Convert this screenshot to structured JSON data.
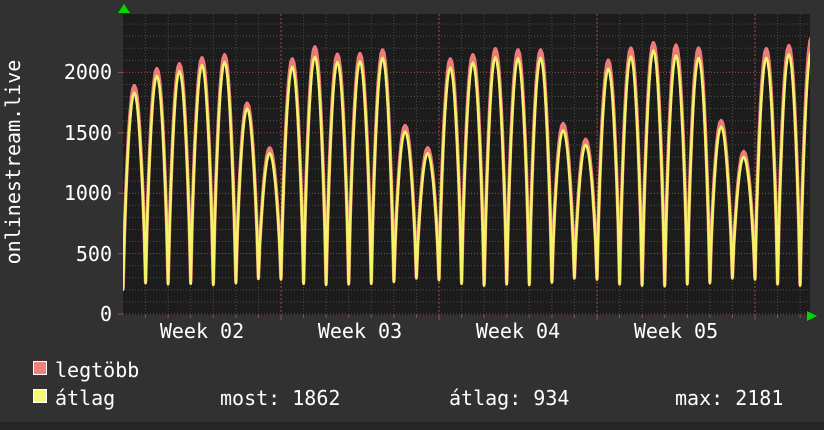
{
  "title": "onlinestream.live",
  "window": {
    "bg": "#313131",
    "bottom_strip": "#262626",
    "plot_bg": "#1c1c1c"
  },
  "legend": {
    "items": [
      {
        "label": "legtöbb",
        "color": "#f08080"
      },
      {
        "label": "átlag",
        "color": "#f9f97d"
      }
    ]
  },
  "stats": [
    {
      "label": "most",
      "value": "1862",
      "text": "most: 1862"
    },
    {
      "label": "átlag",
      "value": "934",
      "text": "átlag: 934"
    },
    {
      "label": "max",
      "value": "2181",
      "text": "max: 2181"
    }
  ],
  "chart_data": {
    "type": "line",
    "title": "onlinestream.live",
    "xlabel": "",
    "ylabel": "onlinestream.live",
    "grid": true,
    "legend_position": "bottom-left",
    "y_ticks": [
      0,
      500,
      1000,
      1500,
      2000
    ],
    "y_minor_step": 100,
    "ylim": [
      0,
      2480
    ],
    "x_week_labels": [
      "Week 02",
      "Week 03",
      "Week 04",
      "Week 05"
    ],
    "days_per_week": 7,
    "days_visible": 30.44,
    "series": [
      {
        "name": "legtöbb",
        "color": "#ef7a7a",
        "daily_peaks": [
          1890,
          2030,
          2070,
          2120,
          2145,
          1745,
          1375,
          2110,
          2210,
          2150,
          2155,
          2185,
          1560,
          1375,
          2110,
          2145,
          2195,
          2185,
          2185,
          1575,
          1445,
          2100,
          2200,
          2245,
          2225,
          2200,
          1600,
          1345,
          2195,
          2220,
          2290
        ]
      },
      {
        "name": "átlag",
        "color": "#f3f468",
        "daily_peaks": [
          1830,
          1970,
          2010,
          2060,
          2085,
          1700,
          1330,
          2045,
          2130,
          2085,
          2090,
          2120,
          1510,
          1330,
          2040,
          2080,
          2125,
          2115,
          2120,
          1520,
          1400,
          2030,
          2130,
          2181,
          2140,
          2120,
          1550,
          1300,
          2120,
          2150,
          2180
        ]
      }
    ],
    "daily_troughs": [
      200,
      255,
      245,
      250,
      240,
      255,
      290,
      285,
      250,
      240,
      245,
      250,
      265,
      295,
      280,
      250,
      235,
      245,
      240,
      260,
      295,
      285,
      245,
      235,
      230,
      245,
      255,
      295,
      285,
      245,
      235,
      225
    ],
    "legend_stats": {
      "most": 1862,
      "átlag": 934,
      "max": 2181
    },
    "colors": {
      "grid_minor": "#4c4c4c",
      "grid_major": "#9c4f4f",
      "axis_arrow": "#00d800",
      "text": "#ffffff"
    }
  }
}
